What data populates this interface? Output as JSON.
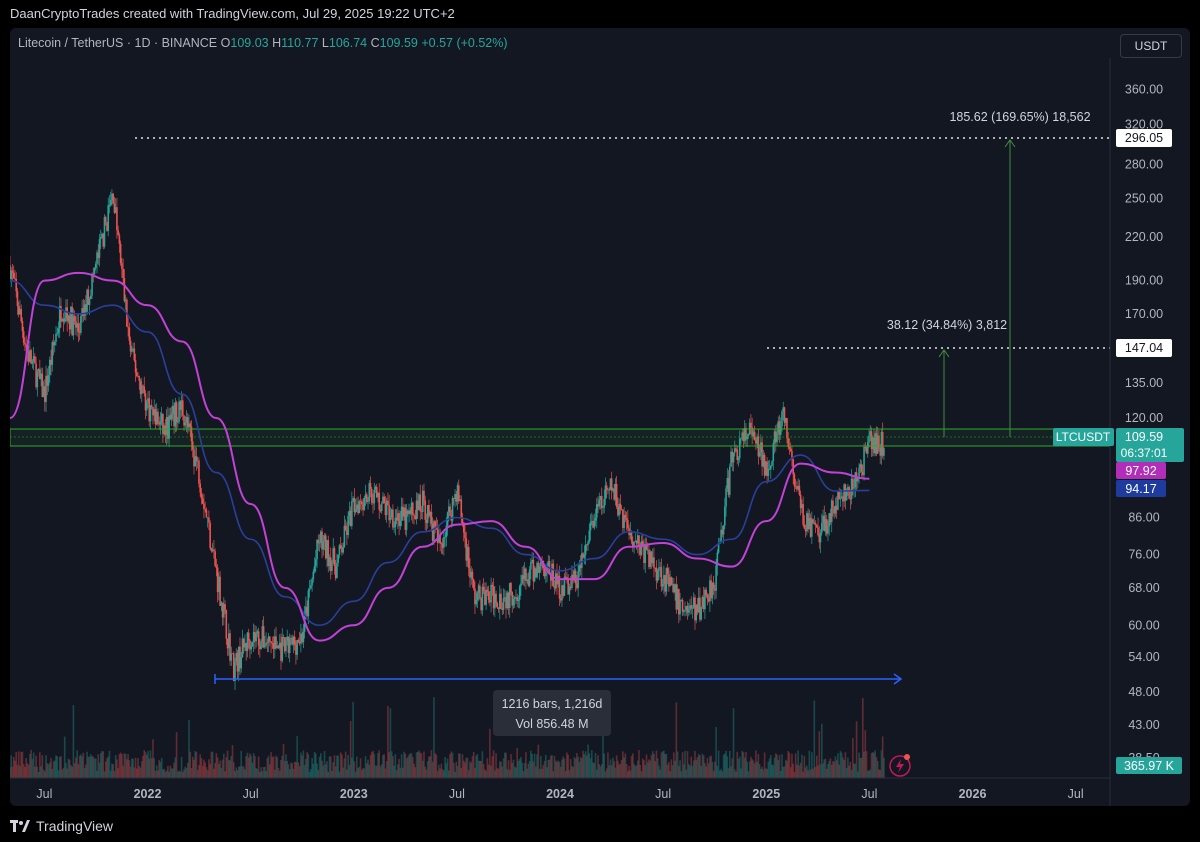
{
  "header": {
    "attribution": "DaanCryptoTrades created with TradingView.com, Jul 29, 2025 19:22 UTC+2"
  },
  "legend": {
    "symbol": "Litecoin / TetherUS · 1D · BINANCE",
    "open_label": "O",
    "open": "109.03",
    "high_label": "H",
    "high": "110.77",
    "low_label": "L",
    "low": "106.74",
    "close_label": "C",
    "close": "109.59",
    "change": "+0.57 (+0.52%)"
  },
  "currency_button": "USDT",
  "footer": {
    "brand": "TradingView"
  },
  "colors": {
    "background": "#131722",
    "up": "#26a69a",
    "down": "#ef5350",
    "ma_fast": "#2a3f9a",
    "ma_slow": "#c242d6",
    "measure": "#3f8f3f",
    "range": "#2962ff",
    "zone": "#2eaa2e"
  },
  "chart_data": {
    "type": "line",
    "title": "Litecoin / TetherUS · 1D · BINANCE",
    "y_scale": "log",
    "ylim": [
      36,
      400
    ],
    "x_ticks": [
      "Jul",
      "2022",
      "Jul",
      "2023",
      "Jul",
      "2024",
      "Jul",
      "2025",
      "Jul",
      "2026",
      "Jul"
    ],
    "y_ticks": [
      "360.00",
      "320.00",
      "280.00",
      "250.00",
      "220.00",
      "190.00",
      "170.00",
      "135.00",
      "120.00",
      "86.00",
      "76.00",
      "68.00",
      "60.00",
      "54.00",
      "48.00",
      "43.00",
      "38.50"
    ],
    "series": [
      {
        "name": "LTCUSDT",
        "x": [
          "2021-05",
          "2021-06",
          "2021-07",
          "2021-08",
          "2021-09",
          "2021-10",
          "2021-11",
          "2021-12",
          "2022-01",
          "2022-02",
          "2022-03",
          "2022-04",
          "2022-05",
          "2022-06",
          "2022-07",
          "2022-08",
          "2022-09",
          "2022-10",
          "2022-11",
          "2022-12",
          "2023-01",
          "2023-02",
          "2023-03",
          "2023-04",
          "2023-05",
          "2023-06",
          "2023-07",
          "2023-08",
          "2023-09",
          "2023-10",
          "2023-11",
          "2023-12",
          "2024-01",
          "2024-02",
          "2024-03",
          "2024-04",
          "2024-05",
          "2024-06",
          "2024-07",
          "2024-08",
          "2024-09",
          "2024-10",
          "2024-11",
          "2024-12",
          "2025-01",
          "2025-02",
          "2025-03",
          "2025-04",
          "2025-05",
          "2025-06",
          "2025-07"
        ],
        "y": [
          200,
          150,
          130,
          175,
          160,
          200,
          255,
          150,
          125,
          115,
          125,
          100,
          72,
          52,
          58,
          57,
          55,
          58,
          80,
          73,
          90,
          94,
          88,
          85,
          91,
          78,
          95,
          66,
          66,
          66,
          70,
          74,
          68,
          70,
          86,
          95,
          83,
          76,
          71,
          64,
          63,
          70,
          105,
          115,
          102,
          120,
          88,
          80,
          90,
          94,
          110
        ]
      },
      {
        "name": "",
        "x": [
          "2021-05",
          "2021-07",
          "2021-09",
          "2021-11",
          "2022-01",
          "2022-03",
          "2022-05",
          "2022-07",
          "2022-09",
          "2022-11",
          "2023-01",
          "2023-03",
          "2023-05",
          "2023-07",
          "2023-09",
          "2023-11",
          "2024-01",
          "2024-03",
          "2024-05",
          "2024-07",
          "2024-09",
          "2024-11",
          "2025-01",
          "2025-03",
          "2025-05",
          "2025-07"
        ],
        "y": [
          190,
          175,
          170,
          175,
          160,
          130,
          100,
          80,
          66,
          60,
          65,
          74,
          82,
          86,
          83,
          76,
          72,
          75,
          82,
          80,
          76,
          80,
          97,
          106,
          94,
          94.17
        ]
      },
      {
        "name": "",
        "x": [
          "2021-05",
          "2021-07",
          "2021-09",
          "2021-11",
          "2022-01",
          "2022-03",
          "2022-05",
          "2022-07",
          "2022-09",
          "2022-11",
          "2023-01",
          "2023-03",
          "2023-05",
          "2023-07",
          "2023-09",
          "2023-11",
          "2024-01",
          "2024-03",
          "2024-05",
          "2024-07",
          "2024-09",
          "2024-11",
          "2025-01",
          "2025-03",
          "2025-05",
          "2025-07"
        ],
        "y": [
          120,
          190,
          195,
          190,
          175,
          155,
          120,
          90,
          68,
          57,
          60,
          68,
          78,
          84,
          85,
          78,
          70,
          70,
          78,
          79,
          75,
          73,
          85,
          103,
          100,
          97.92
        ]
      }
    ],
    "annotations": {
      "level_top": "296.05",
      "level_mid": "147.04",
      "last_price": "109.59",
      "countdown": "06:37:01",
      "ma_slow_value": "97.92",
      "ma_fast_value": "94.17",
      "volume_value": "365.97 K",
      "symbol_tag": "LTCUSDT",
      "measure_big": "185.62 (169.65%) 18,562",
      "measure_small": "38.12 (34.84%) 3,812",
      "range_bars": "1216 bars, 1,216d",
      "range_vol": "Vol 856.48 M"
    }
  }
}
